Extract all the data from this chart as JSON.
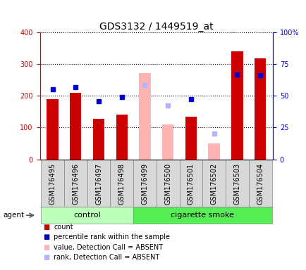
{
  "title": "GDS3132 / 1449519_at",
  "samples": [
    "GSM176495",
    "GSM176496",
    "GSM176497",
    "GSM176498",
    "GSM176499",
    "GSM176500",
    "GSM176501",
    "GSM176502",
    "GSM176503",
    "GSM176504"
  ],
  "count_values": [
    190,
    210,
    127,
    140,
    null,
    null,
    135,
    null,
    340,
    318
  ],
  "count_absent_values": [
    null,
    null,
    null,
    null,
    272,
    110,
    null,
    50,
    null,
    null
  ],
  "percentile_values": [
    220,
    228,
    183,
    196,
    null,
    null,
    190,
    null,
    268,
    265
  ],
  "percentile_absent_values": [
    null,
    null,
    null,
    null,
    235,
    170,
    null,
    82,
    null,
    null
  ],
  "count_color": "#cc0000",
  "count_absent_color": "#ffb3b3",
  "percentile_color": "#0000cc",
  "percentile_absent_color": "#b3b3ff",
  "bar_width": 0.5,
  "ylim_left": [
    0,
    400
  ],
  "ylim_right": [
    0,
    100
  ],
  "yticks_left": [
    0,
    100,
    200,
    300,
    400
  ],
  "yticks_right": [
    0,
    25,
    50,
    75,
    100
  ],
  "yticklabels_right": [
    "0",
    "25",
    "50",
    "75",
    "100%"
  ],
  "control_color": "#bbffbb",
  "smoke_color": "#55ee55",
  "title_fontsize": 10,
  "tick_fontsize": 7,
  "legend_fontsize": 7,
  "group_fontsize": 8,
  "n_control": 4,
  "n_samples": 10
}
